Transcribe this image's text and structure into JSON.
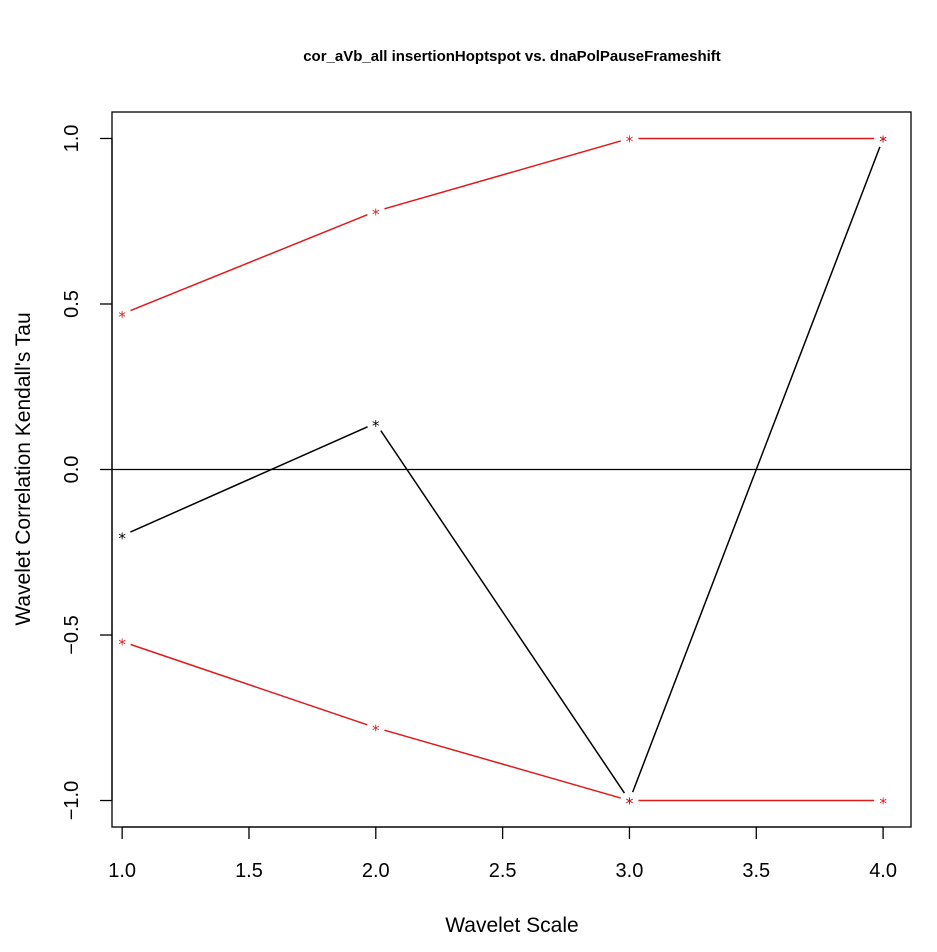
{
  "chart_data": {
    "type": "line",
    "title": "cor_aVb_all insertionHoptspot vs. dnaPolPauseFrameshift",
    "xlabel": "Wavelet Scale",
    "ylabel": "Wavelet Correlation Kendall's Tau",
    "xlim": [
      0.96,
      4.11
    ],
    "ylim": [
      -1.08,
      1.08
    ],
    "x_ticks": [
      1.0,
      1.5,
      2.0,
      2.5,
      3.0,
      3.5,
      4.0
    ],
    "x_tick_labels": [
      "1.0",
      "1.5",
      "2.0",
      "2.5",
      "3.0",
      "3.5",
      "4.0"
    ],
    "y_ticks": [
      -1.0,
      -0.5,
      0.0,
      0.5,
      1.0
    ],
    "y_tick_labels": [
      "−1.0",
      "−0.5",
      "0.0",
      "0.5",
      "1.0"
    ],
    "marker_symbol": "*",
    "reference_line_y": 0,
    "grid": false,
    "series": [
      {
        "x": [
          1,
          2,
          3,
          4
        ],
        "values": [
          -0.2,
          0.14,
          -1.0,
          1.0
        ],
        "color": "#000000"
      },
      {
        "x": [
          1,
          2,
          3,
          4
        ],
        "values": [
          0.47,
          0.78,
          1.0,
          1.0
        ],
        "color": "#e0191a"
      },
      {
        "x": [
          1,
          2,
          3,
          4
        ],
        "values": [
          -0.52,
          -0.78,
          -1.0,
          -1.0
        ],
        "color": "#e0191a"
      }
    ]
  }
}
